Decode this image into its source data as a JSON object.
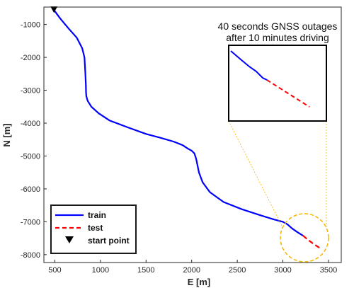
{
  "chart_data": {
    "type": "line",
    "xlabel": "E [m]",
    "ylabel": "N [m]",
    "xlim": [
      380,
      3640
    ],
    "ylim": [
      -8240,
      -470
    ],
    "xticks": [
      500,
      1000,
      1500,
      2000,
      2500,
      3000,
      3500
    ],
    "yticks": [
      -1000,
      -2000,
      -3000,
      -4000,
      -5000,
      -6000,
      -7000,
      -8000
    ],
    "grid": false,
    "legend_position": "bottom-left",
    "series": [
      {
        "name": "train",
        "color": "#0000ff",
        "style": "solid",
        "x": [
          490,
          560,
          650,
          740,
          800,
          825,
          835,
          840,
          842,
          845,
          860,
          900,
          980,
          1100,
          1300,
          1500,
          1650,
          1800,
          1900,
          1960,
          2000,
          2030,
          2050,
          2065,
          2080,
          2120,
          2200,
          2350,
          2550,
          2750,
          2900,
          3000,
          3050,
          3100,
          3150,
          3190,
          3220
        ],
        "y": [
          -560,
          -820,
          -1120,
          -1400,
          -1720,
          -2000,
          -2500,
          -2850,
          -3050,
          -3180,
          -3320,
          -3500,
          -3700,
          -3920,
          -4130,
          -4330,
          -4440,
          -4560,
          -4670,
          -4780,
          -4840,
          -4920,
          -5100,
          -5300,
          -5500,
          -5800,
          -6100,
          -6400,
          -6620,
          -6800,
          -6930,
          -7000,
          -7080,
          -7200,
          -7300,
          -7370,
          -7420
        ]
      },
      {
        "name": "test",
        "color": "#ff0000",
        "style": "dashed",
        "x": [
          3220,
          3280,
          3340,
          3400
        ],
        "y": [
          -7420,
          -7560,
          -7680,
          -7790
        ]
      }
    ],
    "markers": [
      {
        "name": "start point",
        "symbol": "triangle-down",
        "color": "#000000",
        "x": 490,
        "y": -560
      }
    ],
    "annotation": {
      "lines": [
        "40 seconds GNSS outages",
        "after 10 minutes driving"
      ],
      "highlight_color": "#f5b400"
    }
  }
}
